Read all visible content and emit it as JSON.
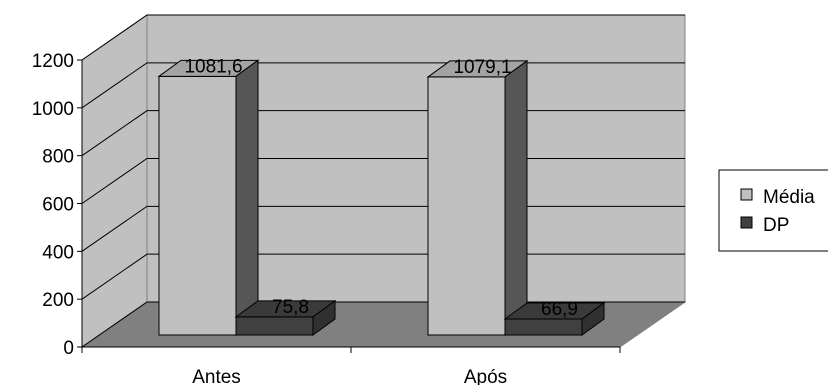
{
  "chart_data": {
    "type": "bar",
    "title": "",
    "xlabel": "",
    "ylabel": "",
    "categories": [
      "Antes",
      "Após"
    ],
    "series": [
      {
        "name": "Média",
        "values": [
          1081.6,
          1079.1
        ],
        "labels": [
          "1081,6",
          "1079,1"
        ],
        "color": "#c0c0c0"
      },
      {
        "name": "DP",
        "values": [
          75.8,
          66.9
        ],
        "labels": [
          "75,8",
          "66,9"
        ],
        "color": "#404040"
      }
    ],
    "ylim": [
      0,
      1200
    ],
    "yticks": [
      0,
      200,
      400,
      600,
      800,
      1000,
      1200
    ],
    "ytick_labels": [
      "0",
      "200",
      "400",
      "600",
      "800",
      "1000",
      "1200"
    ],
    "grid": true,
    "legend": "right",
    "colors": {
      "back_wall": "#c0c0c0",
      "side_wall": "#c0c0c0",
      "floor": "#808080",
      "grid": "#000000"
    }
  }
}
